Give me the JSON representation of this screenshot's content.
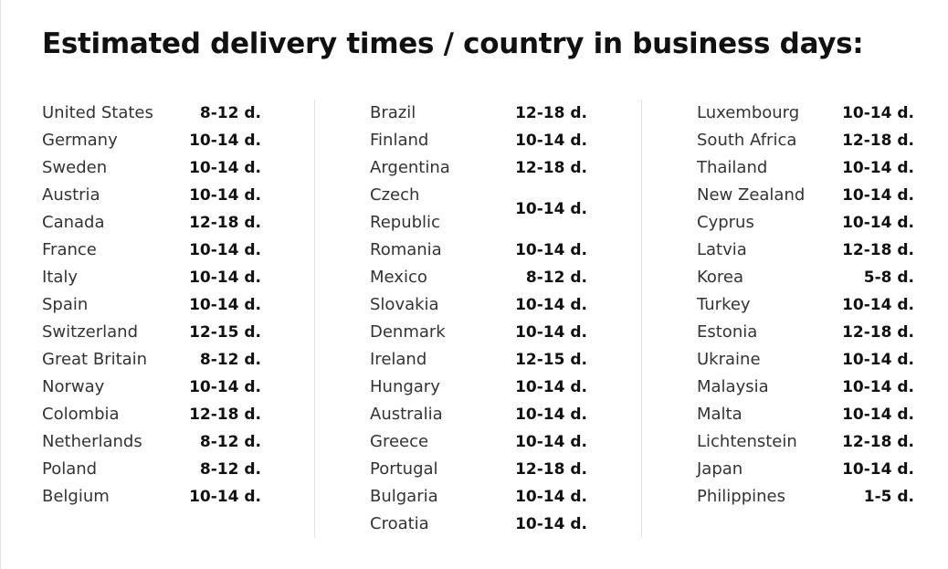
{
  "title": "Estimated delivery times / country in business days:",
  "columns": [
    [
      {
        "country": "United States",
        "days": "8-12 d."
      },
      {
        "country": "Germany",
        "days": "10-14 d."
      },
      {
        "country": "Sweden",
        "days": "10-14 d."
      },
      {
        "country": "Austria",
        "days": "10-14 d."
      },
      {
        "country": "Canada",
        "days": "12-18 d."
      },
      {
        "country": "France",
        "days": "10-14 d."
      },
      {
        "country": "Italy",
        "days": "10-14 d."
      },
      {
        "country": "Spain",
        "days": "10-14 d."
      },
      {
        "country": "Switzerland",
        "days": "12-15 d."
      },
      {
        "country": "Great Britain",
        "days": "8-12 d."
      },
      {
        "country": "Norway",
        "days": "10-14 d."
      },
      {
        "country": "Colombia",
        "days": "12-18 d."
      },
      {
        "country": "Netherlands",
        "days": "8-12 d."
      },
      {
        "country": "Poland",
        "days": "8-12 d."
      },
      {
        "country": "Belgium",
        "days": "10-14 d."
      }
    ],
    [
      {
        "country": "Brazil",
        "days": "12-18 d."
      },
      {
        "country": "Finland",
        "days": "10-14 d."
      },
      {
        "country": "Argentina",
        "days": "12-18 d."
      },
      {
        "country": "Czech Republic",
        "days": "10-14 d."
      },
      {
        "country": "Romania",
        "days": "10-14 d."
      },
      {
        "country": "Mexico",
        "days": "8-12 d."
      },
      {
        "country": "Slovakia",
        "days": "10-14 d."
      },
      {
        "country": "Denmark",
        "days": "10-14 d."
      },
      {
        "country": "Ireland",
        "days": "12-15 d."
      },
      {
        "country": "Hungary",
        "days": "10-14 d."
      },
      {
        "country": "Australia",
        "days": "10-14 d."
      },
      {
        "country": "Greece",
        "days": "10-14 d."
      },
      {
        "country": "Portugal",
        "days": "12-18 d."
      },
      {
        "country": "Bulgaria",
        "days": "10-14 d."
      },
      {
        "country": "Croatia",
        "days": "10-14 d."
      }
    ],
    [
      {
        "country": "Luxembourg",
        "days": "10-14 d."
      },
      {
        "country": "South Africa",
        "days": "12-18 d."
      },
      {
        "country": "Thailand",
        "days": "10-14 d."
      },
      {
        "country": "New Zealand",
        "days": "10-14 d."
      },
      {
        "country": "Cyprus",
        "days": "10-14 d."
      },
      {
        "country": "Latvia",
        "days": "12-18 d."
      },
      {
        "country": "Korea",
        "days": "5-8 d."
      },
      {
        "country": "Turkey",
        "days": "10-14 d."
      },
      {
        "country": "Estonia",
        "days": "12-18 d."
      },
      {
        "country": "Ukraine",
        "days": "10-14 d."
      },
      {
        "country": "Malaysia",
        "days": "10-14 d."
      },
      {
        "country": "Malta",
        "days": "10-14 d."
      },
      {
        "country": "Lichtenstein",
        "days": "12-18 d."
      },
      {
        "country": "Japan",
        "days": "10-14 d."
      },
      {
        "country": "Philippines",
        "days": "1-5 d."
      }
    ]
  ]
}
